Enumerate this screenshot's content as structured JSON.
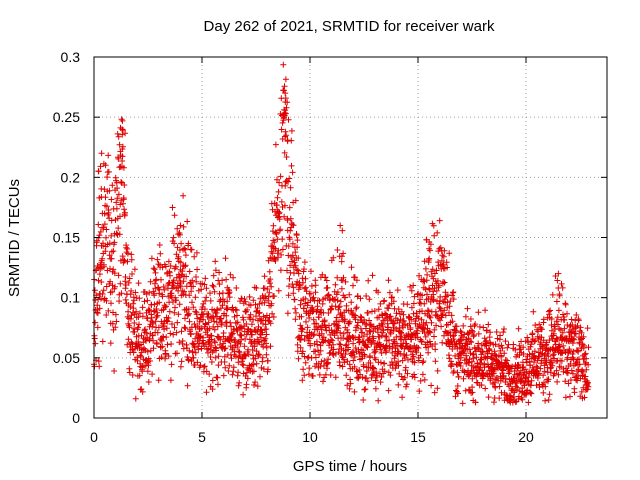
{
  "chart_data": {
    "type": "scatter",
    "title": "Day 262 of 2021, SRMTID for receiver wark",
    "xlabel": "GPS time / hours",
    "ylabel": "SRMTID / TECUs",
    "xlim": [
      0,
      23.75
    ],
    "ylim": [
      0,
      0.3
    ],
    "xticks": [
      0,
      5,
      10,
      15,
      20
    ],
    "yticks": [
      0,
      0.05,
      0.1,
      0.15,
      0.2,
      0.25,
      0.3
    ],
    "ytick_labels": [
      "0",
      "0.05",
      "0.1",
      "0.15",
      "0.2",
      "0.25",
      "0.3"
    ],
    "grid": true,
    "marker": "+",
    "series": [
      {
        "name": "SRMTID",
        "color": "#e00000",
        "approx_profile": [
          {
            "x": 0.0,
            "y": 0.08
          },
          {
            "x": 0.3,
            "y": 0.12
          },
          {
            "x": 0.6,
            "y": 0.15
          },
          {
            "x": 1.0,
            "y": 0.13
          },
          {
            "x": 1.3,
            "y": 0.2
          },
          {
            "x": 1.6,
            "y": 0.08
          },
          {
            "x": 2.2,
            "y": 0.06
          },
          {
            "x": 3.0,
            "y": 0.09
          },
          {
            "x": 4.0,
            "y": 0.11
          },
          {
            "x": 5.0,
            "y": 0.07
          },
          {
            "x": 6.0,
            "y": 0.08
          },
          {
            "x": 7.0,
            "y": 0.06
          },
          {
            "x": 8.0,
            "y": 0.07
          },
          {
            "x": 8.8,
            "y": 0.22
          },
          {
            "x": 9.5,
            "y": 0.09
          },
          {
            "x": 10.5,
            "y": 0.07
          },
          {
            "x": 11.5,
            "y": 0.08
          },
          {
            "x": 12.5,
            "y": 0.06
          },
          {
            "x": 13.5,
            "y": 0.07
          },
          {
            "x": 14.5,
            "y": 0.06
          },
          {
            "x": 15.5,
            "y": 0.09
          },
          {
            "x": 16.2,
            "y": 0.11
          },
          {
            "x": 16.8,
            "y": 0.05
          },
          {
            "x": 18.0,
            "y": 0.05
          },
          {
            "x": 19.0,
            "y": 0.04
          },
          {
            "x": 19.5,
            "y": 0.035
          },
          {
            "x": 20.5,
            "y": 0.05
          },
          {
            "x": 21.5,
            "y": 0.06
          },
          {
            "x": 22.5,
            "y": 0.05
          },
          {
            "x": 22.9,
            "y": 0.04
          }
        ],
        "spikes": [
          {
            "x": 0.35,
            "y": 0.22
          },
          {
            "x": 1.3,
            "y": 0.24
          },
          {
            "x": 8.85,
            "y": 0.27
          },
          {
            "x": 8.8,
            "y": 0.256
          },
          {
            "x": 11.4,
            "y": 0.16
          },
          {
            "x": 15.4,
            "y": 0.148
          },
          {
            "x": 4.0,
            "y": 0.16
          },
          {
            "x": 21.5,
            "y": 0.12
          }
        ],
        "x_end": 22.9,
        "point_count": 2760
      }
    ]
  }
}
